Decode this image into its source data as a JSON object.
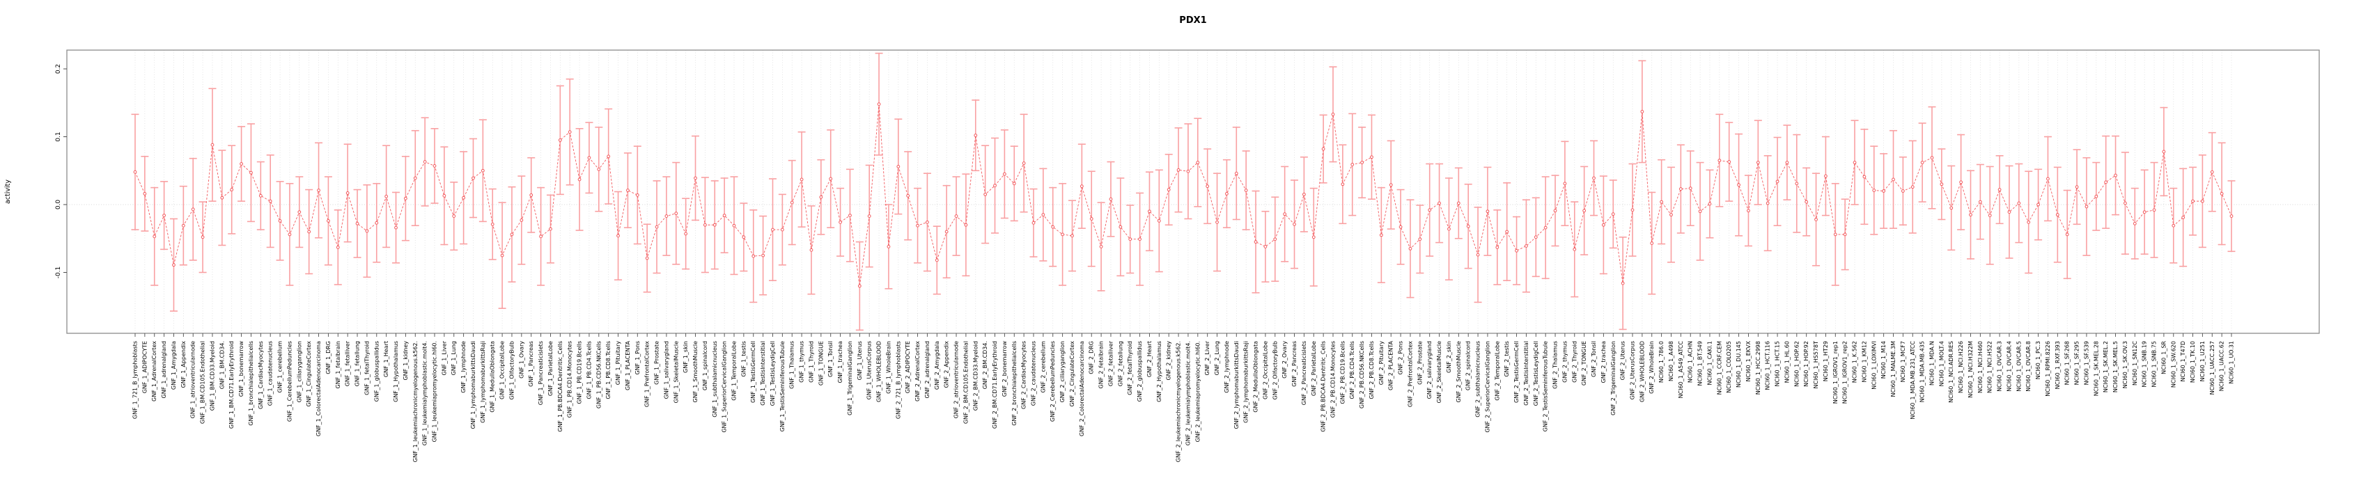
{
  "title": "PDX1",
  "y_axis": {
    "label": "activity",
    "ticks": [
      0.2,
      0.1,
      0.0,
      -0.1
    ]
  },
  "colors": {
    "marker_line": "#f2585c",
    "error_bar": "#f9a0a2",
    "grid": "#d8d8d8",
    "box": "#8c8c8c",
    "tick": "#4d4d4d",
    "text": "#000000"
  },
  "chart_data": {
    "type": "line",
    "title": "PDX1",
    "xlabel": "",
    "ylabel": "activity",
    "ylim": [
      -0.19,
      0.228
    ],
    "grid": "vertical dotted per category + dotted zero line",
    "legend": "none",
    "marker": "open-circle",
    "line_style": "dashed",
    "error_bars": true,
    "categories": [
      "GNF_1_721_B_lymphoblasts",
      "GNF_1_ADIPOCYTE",
      "GNF_1_AdrenalCortex",
      "GNF_1_adrenalgland",
      "GNF_1_Amygdala",
      "GNF_1_Appendix",
      "GNF_1_atrioventricularnode",
      "GNF_1_BM.CD105.Endothelial",
      "GNF_1_BM.CD33.Myeloid",
      "GNF_1_BM.CD34.",
      "GNF_1_BM.CD71.EarlyErythroid",
      "GNF_1_bonemarrow",
      "GNF_1_bronchialepithelialcells",
      "GNF_1_CardiacMyocytes",
      "GNF_1_caudatenucleus",
      "GNF_1_cerebellum",
      "GNF_1_CerebellumPeduncles",
      "GNF_1_ciliaryganglion",
      "GNF_1_CingulateCortex",
      "GNF_1_ColorectalAdenocarcinoma",
      "GNF_1_DRG",
      "GNF_1_fetalbrain",
      "GNF_1_fetalliver",
      "GNF_1_fetallung",
      "GNF_1_fetalThyroid",
      "GNF_1_globuspallidus",
      "GNF_1_Heart",
      "GNF_1_Hypothalamus",
      "GNF_1_kidney",
      "GNF_1_leukemiachronicmyelogenous.k562.",
      "GNF_1_leukemialymphoblastic.molt4.",
      "GNF_1_leukemiapromyelocytic.hl60.",
      "GNF_1_Liver",
      "GNF_1_Lung",
      "GNF_1_lymphnode",
      "GNF_1_lymphomaburkittsDaudi",
      "GNF_1_lymphomaburkittsRaji",
      "GNF_1_MedullaOblongata",
      "GNF_1_OccipitalLobe",
      "GNF_1_OlfactoryBulb",
      "GNF_1_Ovary",
      "GNF_1_Pancreas",
      "GNF_1_Pancreaticislets",
      "GNF_1_ParietalLobe",
      "GNF_1_PB.BDCA4.Dentritic_Cells",
      "GNF_1_PB.CD14.Monocytes",
      "GNF_1_PB.CD19.Bcells",
      "GNF_1_PB.CD4.Tcells",
      "GNF_1_PB.CD56.NKCells",
      "GNF_1_PB.CD8.Tcells",
      "GNF_1_Pituitary",
      "GNF_1_PLACENTA",
      "GNF_1_Pons",
      "GNF_1_PrefrontalCortex",
      "GNF_1_Prostate",
      "GNF_1_salivarygland",
      "GNF_1_SkeletalMuscle",
      "GNF_1_skin",
      "GNF_1_SmoothMuscle",
      "GNF_1_spinalcord",
      "GNF_1_subthalamicnucleus",
      "GNF_1_SuperiorCervicalGanglion",
      "GNF_1_TemporalLobe",
      "GNF_1_testis",
      "GNF_1_TestisGermCell",
      "GNF_1_TestisInterstitial",
      "GNF_1_TestisLeydigCell",
      "GNF_1_TestisSeminiferousTubule",
      "GNF_1_Thalamus",
      "GNF_1_thymus",
      "GNF_1_Thyroid",
      "GNF_1_TONGUE",
      "GNF_1_Tonsil",
      "GNF_1_trachea",
      "GNF_1_TrigeminalGanglion",
      "GNF_1_Uterus",
      "GNF_1_UterusCorpus",
      "GNF_1_WHOLEBLOOD",
      "GNF_1_WholeBrain",
      "GNF_2_721_B_lymphoblasts",
      "GNF_2_ADIPOCYTE",
      "GNF_2_AdrenalCortex",
      "GNF_2_adrenalgland",
      "GNF_2_Amygdala",
      "GNF_2_Appendix",
      "GNF_2_atrioventricularnode",
      "GNF_2_BM.CD105.Endothelial",
      "GNF_2_BM.CD33.Myeloid",
      "GNF_2_BM.CD34.",
      "GNF_2_BM.CD71.EarlyErythroid",
      "GNF_2_bonemarrow",
      "GNF_2_bronchialepithelialcells",
      "GNF_2_CardiacMyocytes",
      "GNF_2_caudatenucleus",
      "GNF_2_cerebellum",
      "GNF_2_CerebellumPeduncles",
      "GNF_2_ciliaryganglion",
      "GNF_2_CingulateCortex",
      "GNF_2_ColorectalAdenocarcinoma",
      "GNF_2_DRG",
      "GNF_2_fetalbrain",
      "GNF_2_fetalliver",
      "GNF_2_fetallung",
      "GNF_2_fetalThyroid",
      "GNF_2_globuspallidus",
      "GNF_2_Heart",
      "GNF_2_Hypothalamus",
      "GNF_2_kidney",
      "GNF_2_leukemiachronicmyelogenous.k562.",
      "GNF_2_leukemialymphoblastic.molt4.",
      "GNF_2_leukemiapromyelocytic.hl60.",
      "GNF_2_Liver",
      "GNF_2_Lung",
      "GNF_2_lymphnode",
      "GNF_2_lymphomaburkittsDaudi",
      "GNF_2_lymphomaburkittsRaji",
      "GNF_2_MedullaOblongata",
      "GNF_2_OccipitalLobe",
      "GNF_2_OlfactoryBulb",
      "GNF_2_Ovary",
      "GNF_2_Pancreas",
      "GNF_2_Pancreaticislets",
      "GNF_2_ParietalLobe",
      "GNF_2_PB.BDCA4.Dentritic_Cells",
      "GNF_2_PB.CD14.Monocytes",
      "GNF_2_PB.CD19.Bcells",
      "GNF_2_PB.CD4.Tcells",
      "GNF_2_PB.CD56.NKCells",
      "GNF_2_PB.CD8.Tcells",
      "GNF_2_Pituitary",
      "GNF_2_PLACENTA",
      "GNF_2_Pons",
      "GNF_2_PrefrontalCortex",
      "GNF_2_Prostate",
      "GNF_2_salivarygland",
      "GNF_2_SkeletalMuscle",
      "GNF_2_skin",
      "GNF_2_SmoothMuscle",
      "GNF_2_spinalcord",
      "GNF_2_subthalamicnucleus",
      "GNF_2_SuperiorCervicalGanglion",
      "GNF_2_TemporalLobe",
      "GNF_2_testis",
      "GNF_2_TestisGermCell",
      "GNF_2_TestisInterstitial",
      "GNF_2_TestisLeydigCell",
      "GNF_2_TestisSeminiferousTubule",
      "GNF_2_Thalamus",
      "GNF_2_thymus",
      "GNF_2_Thyroid",
      "GNF_2_TONGUE",
      "GNF_2_Tonsil",
      "GNF_2_trachea",
      "GNF_2_TrigeminalGanglion",
      "GNF_2_Uterus",
      "GNF_2_UterusCorpus",
      "GNF_2_WHOLEBLOOD",
      "GNF_2_WholeBrain",
      "NCI60_1_786.0",
      "NCI60_1_A498",
      "NCI60_1_A549_ATCC",
      "NCI60_1_ACHN",
      "NCI60_1_BT.549",
      "NCI60_1_CAKI.1",
      "NCI60_1_CCRF.CEM",
      "NCI60_1_COLO205",
      "NCI60_1_DU.145",
      "NCI60_1_EKVX",
      "NCI60_1_HCC.2998",
      "NCI60_1_HCT.116",
      "NCI60_1_HCT.15",
      "NCI60_1_HL.60",
      "NCI60_1_HOP.62",
      "NCI60_1_HOP.92",
      "NCI60_1_HS578T",
      "NCI60_1_HT29",
      "NCI60_1_IGROV1_rep1",
      "NCI60_1_IGROV1_rep2",
      "NCI60_1_K.562",
      "NCI60_1_KM12",
      "NCI60_1_LOXIMVI",
      "NCI60_1_M14",
      "NCI60_1_MALME.3M",
      "NCI60_1_MCF7",
      "NCI60_1_MDA.MB.231_ATCC",
      "NCI60_1_MDA.MB.435",
      "NCI60_1_MDA.N",
      "NCI60_1_MOLT.4",
      "NCI60_1_NCI.ADR.RES",
      "NCI60_1_NCI.H226",
      "NCI60_1_NCI.H322M",
      "NCI60_1_NCI.H460",
      "NCI60_1_NCI.H522",
      "NCI60_1_OVCAR.3",
      "NCI60_1_OVCAR.4",
      "NCI60_1_OVCAR.5",
      "NCI60_1_OVCAR.8",
      "NCI60_1_PC.3",
      "NCI60_1_RPMI.8226",
      "NCI60_1_RXF.393",
      "NCI60_1_SF.268",
      "NCI60_1_SF.295",
      "NCI60_1_SF.539",
      "NCI60_1_SK.MEL.28",
      "NCI60_1_SK.MEL.2",
      "NCI60_1_SK.MEL.5",
      "NCI60_1_SK.OV.3",
      "NCI60_1_SN12C",
      "NCI60_1_SNB.19",
      "NCI60_1_SNB.75",
      "NCI60_1_SR",
      "NCI60_1_SW.620",
      "NCI60_1_T47D",
      "NCI60_1_TK.10",
      "NCI60_1_U251",
      "NCI60_1_UACC.257",
      "NCI60_1_UACC.62",
      "NCI60_1_UO.31"
    ],
    "values": [
      0.048,
      0.016,
      -0.047,
      -0.016,
      -0.089,
      -0.031,
      -0.007,
      -0.048,
      0.088,
      0.01,
      0.022,
      0.06,
      0.047,
      0.013,
      0.005,
      -0.024,
      -0.044,
      -0.011,
      -0.04,
      0.021,
      -0.024,
      -0.063,
      0.017,
      -0.028,
      -0.039,
      -0.027,
      0.012,
      -0.034,
      0.009,
      0.039,
      0.063,
      0.057,
      0.013,
      -0.017,
      0.01,
      0.039,
      0.05,
      -0.029,
      -0.075,
      -0.044,
      -0.023,
      0.014,
      -0.047,
      -0.036,
      0.095,
      0.107,
      0.037,
      0.069,
      0.052,
      0.071,
      -0.046,
      0.021,
      0.014,
      -0.079,
      -0.033,
      -0.017,
      -0.013,
      -0.043,
      0.039,
      -0.03,
      -0.03,
      -0.016,
      -0.031,
      -0.048,
      -0.076,
      -0.075,
      -0.037,
      -0.037,
      0.003,
      0.037,
      -0.067,
      0.011,
      0.038,
      -0.026,
      -0.016,
      -0.12,
      -0.017,
      0.148,
      -0.062,
      0.056,
      0.013,
      -0.031,
      -0.026,
      -0.082,
      -0.04,
      -0.017,
      -0.03,
      0.102,
      0.015,
      0.028,
      0.045,
      0.031,
      0.061,
      -0.027,
      -0.015,
      -0.033,
      -0.044,
      -0.046,
      0.027,
      -0.021,
      -0.062,
      0.008,
      -0.033,
      -0.051,
      -0.051,
      -0.01,
      -0.024,
      0.022,
      0.051,
      0.049,
      0.062,
      0.027,
      -0.026,
      0.016,
      0.046,
      0.021,
      -0.055,
      -0.062,
      -0.051,
      -0.014,
      -0.029,
      0.015,
      -0.048,
      0.082,
      0.133,
      0.03,
      0.059,
      0.062,
      0.07,
      -0.045,
      0.029,
      -0.033,
      -0.065,
      -0.051,
      -0.008,
      0.002,
      -0.036,
      0.002,
      -0.032,
      -0.074,
      -0.01,
      -0.063,
      -0.04,
      -0.068,
      -0.061,
      -0.048,
      -0.034,
      -0.009,
      0.031,
      -0.066,
      -0.009,
      0.039,
      -0.03,
      -0.014,
      -0.116,
      -0.008,
      0.137,
      -0.057,
      0.004,
      -0.015,
      0.023,
      0.024,
      -0.01,
      0.001,
      0.065,
      0.063,
      0.029,
      -0.009,
      0.062,
      0.002,
      0.034,
      0.062,
      0.031,
      0.004,
      -0.022,
      0.042,
      -0.044,
      -0.044,
      0.062,
      0.041,
      0.021,
      0.02,
      0.037,
      0.02,
      0.026,
      0.062,
      0.069,
      0.03,
      -0.005,
      0.033,
      -0.015,
      0.004,
      -0.016,
      0.022,
      -0.011,
      0.002,
      -0.026,
      0.0,
      0.038,
      -0.015,
      -0.044,
      0.026,
      -0.003,
      0.012,
      0.033,
      0.043,
      0.002,
      -0.028,
      -0.011,
      -0.008,
      0.078,
      -0.031,
      -0.019,
      0.005,
      0.005,
      0.048,
      0.016,
      -0.017
    ],
    "errors": [
      0.085,
      0.055,
      0.072,
      0.05,
      0.068,
      0.058,
      0.075,
      0.052,
      0.083,
      0.07,
      0.065,
      0.055,
      0.072,
      0.05,
      0.068,
      0.058,
      0.075,
      0.052,
      0.062,
      0.07,
      0.065,
      0.055,
      0.072,
      0.05,
      0.068,
      0.058,
      0.075,
      0.052,
      0.062,
      0.07,
      0.065,
      0.055,
      0.072,
      0.05,
      0.068,
      0.058,
      0.075,
      0.052,
      0.078,
      0.07,
      0.065,
      0.055,
      0.072,
      0.05,
      0.08,
      0.078,
      0.075,
      0.052,
      0.062,
      0.07,
      0.065,
      0.055,
      0.072,
      0.05,
      0.068,
      0.058,
      0.075,
      0.052,
      0.062,
      0.07,
      0.065,
      0.055,
      0.072,
      0.05,
      0.068,
      0.058,
      0.075,
      0.052,
      0.062,
      0.07,
      0.065,
      0.055,
      0.072,
      0.05,
      0.068,
      0.065,
      0.075,
      0.075,
      0.062,
      0.07,
      0.065,
      0.055,
      0.072,
      0.05,
      0.068,
      0.058,
      0.075,
      0.052,
      0.072,
      0.07,
      0.065,
      0.055,
      0.072,
      0.05,
      0.068,
      0.058,
      0.075,
      0.052,
      0.062,
      0.07,
      0.065,
      0.055,
      0.072,
      0.05,
      0.068,
      0.058,
      0.075,
      0.052,
      0.062,
      0.07,
      0.065,
      0.055,
      0.072,
      0.05,
      0.068,
      0.058,
      0.075,
      0.052,
      0.062,
      0.07,
      0.065,
      0.055,
      0.072,
      0.05,
      0.07,
      0.058,
      0.075,
      0.052,
      0.062,
      0.07,
      0.065,
      0.055,
      0.072,
      0.05,
      0.068,
      0.058,
      0.075,
      0.052,
      0.062,
      0.07,
      0.065,
      0.055,
      0.072,
      0.05,
      0.068,
      0.058,
      0.075,
      0.052,
      0.062,
      0.07,
      0.065,
      0.055,
      0.072,
      0.05,
      0.068,
      0.068,
      0.075,
      0.075,
      0.062,
      0.07,
      0.065,
      0.055,
      0.072,
      0.05,
      0.068,
      0.058,
      0.075,
      0.052,
      0.062,
      0.07,
      0.065,
      0.055,
      0.072,
      0.05,
      0.068,
      0.058,
      0.075,
      0.052,
      0.062,
      0.07,
      0.065,
      0.055,
      0.072,
      0.05,
      0.068,
      0.058,
      0.075,
      0.052,
      0.062,
      0.07,
      0.065,
      0.055,
      0.072,
      0.05,
      0.068,
      0.058,
      0.075,
      0.052,
      0.062,
      0.07,
      0.065,
      0.055,
      0.072,
      0.05,
      0.068,
      0.058,
      0.075,
      0.052,
      0.062,
      0.07,
      0.065,
      0.055,
      0.072,
      0.05,
      0.068,
      0.058,
      0.075,
      0.052
    ]
  }
}
